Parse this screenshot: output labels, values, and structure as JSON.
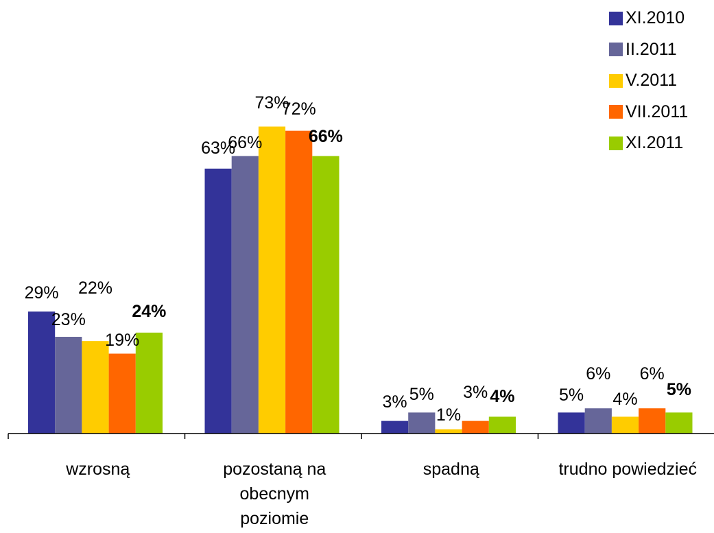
{
  "chart_data": {
    "type": "bar",
    "categories": [
      "wzrosną",
      "pozostaną na obecnym poziomie",
      "spadną",
      "trudno powiedzieć"
    ],
    "category_label_lines": [
      [
        "wzrosną"
      ],
      [
        "pozostaną na",
        "obecnym",
        "poziomie"
      ],
      [
        "spadną"
      ],
      [
        "trudno powiedzieć"
      ]
    ],
    "series": [
      {
        "name": "XI.2010",
        "values": [
          29,
          63,
          3,
          5
        ],
        "labels": [
          "29%",
          "63%",
          "3%",
          "5%"
        ],
        "color": "#333399",
        "bold_labels": false
      },
      {
        "name": "II.2011",
        "values": [
          23,
          66,
          5,
          6
        ],
        "labels": [
          "23%",
          "66%",
          "5%",
          "6%"
        ],
        "color": "#666699",
        "bold_labels": false
      },
      {
        "name": "V.2011",
        "values": [
          22,
          73,
          1,
          4
        ],
        "labels": [
          "22%",
          "73%",
          "1%",
          "4%"
        ],
        "color": "#ffcc00",
        "bold_labels": false
      },
      {
        "name": "VII.2011",
        "values": [
          19,
          72,
          3,
          6
        ],
        "labels": [
          "19%",
          "72%",
          "3%",
          "6%"
        ],
        "color": "#ff6600",
        "bold_labels": false
      },
      {
        "name": "XI.2011",
        "values": [
          24,
          66,
          4,
          5
        ],
        "labels": [
          "24%",
          "66%",
          "4%",
          "5%"
        ],
        "color": "#99cc00",
        "bold_labels": true
      }
    ],
    "ylim": [
      0,
      80
    ],
    "grid": false,
    "legend_position": "top-right",
    "title": "",
    "xlabel": "",
    "ylabel": ""
  }
}
